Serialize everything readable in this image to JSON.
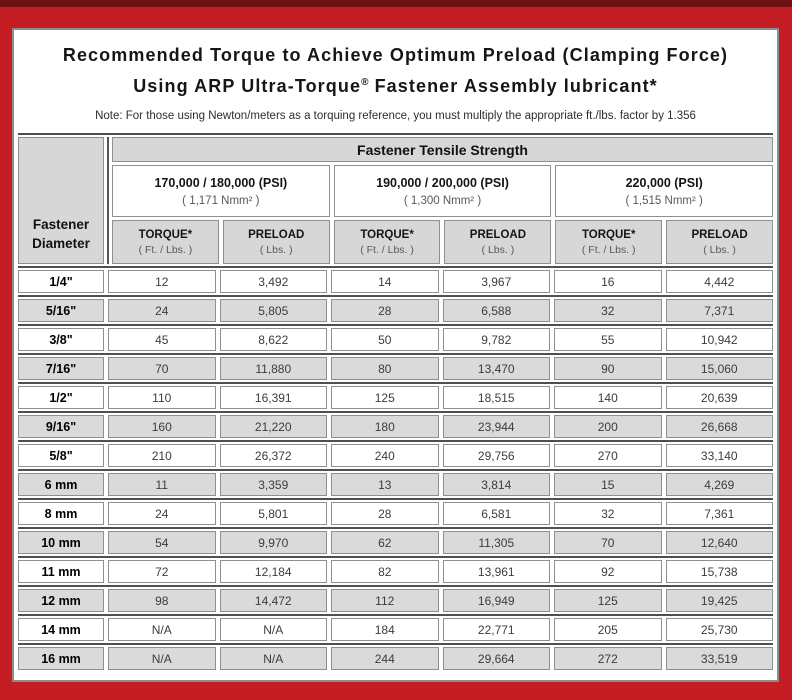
{
  "title": {
    "line1": "Recommended Torque to Achieve Optimum Preload (Clamping Force)",
    "line2_pre": "Using ARP Ultra-Torque",
    "line2_sup": "®",
    "line2_post": " Fastener Assembly lubricant*"
  },
  "note": "Note: For those using Newton/meters as a torquing reference, you must multiply the appropriate ft./lbs. factor by 1.356",
  "table": {
    "tensile_header": "Fastener Tensile Strength",
    "diameter_header": {
      "line1": "Fastener",
      "line2": "Diameter"
    },
    "groups": [
      {
        "psi": "170,000 / 180,000 (PSI)",
        "nmm": "( 1,171 Nmm² )"
      },
      {
        "psi": "190,000 / 200,000 (PSI)",
        "nmm": "( 1,300 Nmm² )"
      },
      {
        "psi": "220,000 (PSI)",
        "nmm": "( 1,515 Nmm² )"
      }
    ],
    "columns": [
      {
        "label": "TORQUE*",
        "unit": "( Ft. / Lbs. )"
      },
      {
        "label": "PRELOAD",
        "unit": "( Lbs. )"
      },
      {
        "label": "TORQUE*",
        "unit": "( Ft. / Lbs. )"
      },
      {
        "label": "PRELOAD",
        "unit": "( Lbs. )"
      },
      {
        "label": "TORQUE*",
        "unit": "( Ft. / Lbs. )"
      },
      {
        "label": "PRELOAD",
        "unit": "( Lbs. )"
      }
    ],
    "rows": [
      [
        "1/4\"",
        "12",
        "3,492",
        "14",
        "3,967",
        "16",
        "4,442"
      ],
      [
        "5/16\"",
        "24",
        "5,805",
        "28",
        "6,588",
        "32",
        "7,371"
      ],
      [
        "3/8\"",
        "45",
        "8,622",
        "50",
        "9,782",
        "55",
        "10,942"
      ],
      [
        "7/16\"",
        "70",
        "11,880",
        "80",
        "13,470",
        "90",
        "15,060"
      ],
      [
        "1/2\"",
        "110",
        "16,391",
        "125",
        "18,515",
        "140",
        "20,639"
      ],
      [
        "9/16\"",
        "160",
        "21,220",
        "180",
        "23,944",
        "200",
        "26,668"
      ],
      [
        "5/8\"",
        "210",
        "26,372",
        "240",
        "29,756",
        "270",
        "33,140"
      ],
      [
        "6 mm",
        "11",
        "3,359",
        "13",
        "3,814",
        "15",
        "4,269"
      ],
      [
        "8 mm",
        "24",
        "5,801",
        "28",
        "6,581",
        "32",
        "7,361"
      ],
      [
        "10 mm",
        "54",
        "9,970",
        "62",
        "11,305",
        "70",
        "12,640"
      ],
      [
        "11 mm",
        "72",
        "12,184",
        "82",
        "13,961",
        "92",
        "15,738"
      ],
      [
        "12 mm",
        "98",
        "14,472",
        "112",
        "16,949",
        "125",
        "19,425"
      ],
      [
        "14 mm",
        "N/A",
        "N/A",
        "184",
        "22,771",
        "205",
        "25,730"
      ],
      [
        "16 mm",
        "N/A",
        "N/A",
        "244",
        "29,664",
        "272",
        "33,519"
      ]
    ]
  },
  "colors": {
    "frame_red": "#c41d23",
    "top_strip": "#6e1114",
    "header_gray": "#d7d7d7",
    "stripe_gray": "#dadada"
  }
}
